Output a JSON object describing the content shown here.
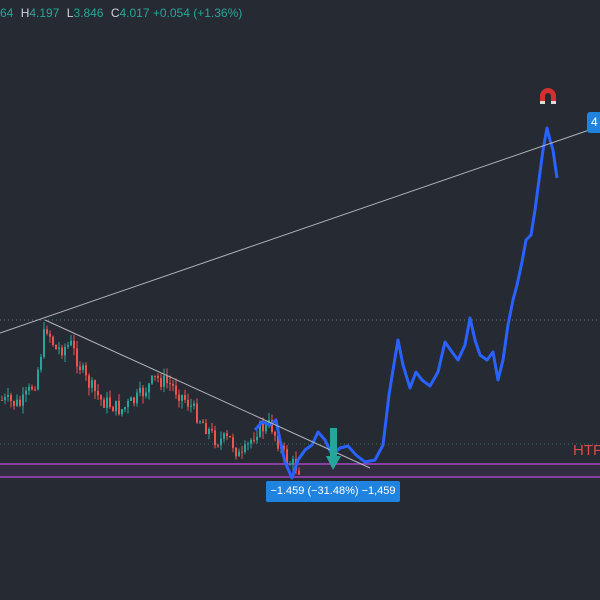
{
  "header": {
    "open_partial": "64",
    "high_label": "H",
    "high": "4.197",
    "low_label": "L",
    "low": "3.846",
    "close_label": "C",
    "close": "4.017",
    "change": "+0.054 (+1.36%)"
  },
  "annotations": {
    "measure": "−1.459 (−31.48%) −1,459",
    "level": "HTF",
    "price_tag": "4"
  }
}
